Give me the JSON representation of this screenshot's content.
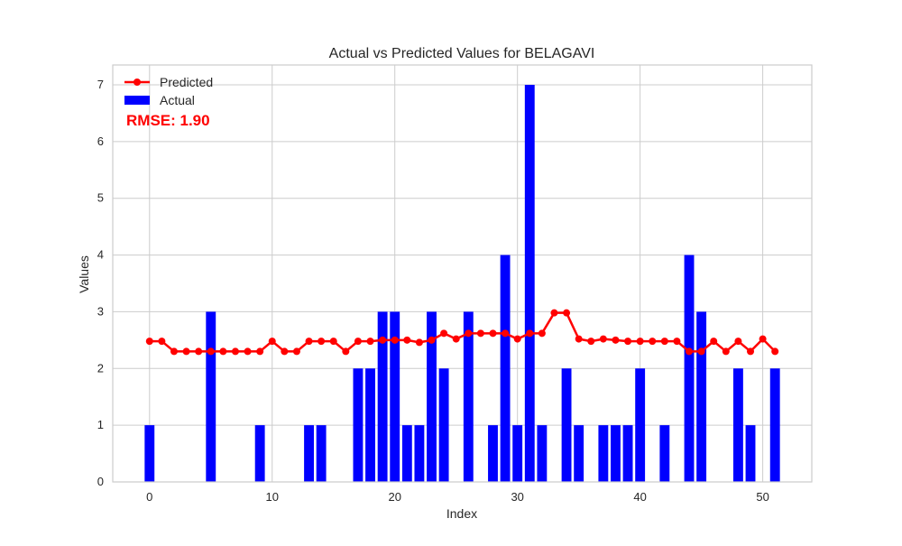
{
  "chart_data": {
    "type": "bar",
    "title": "Actual vs Predicted Values for BELAGAVI",
    "xlabel": "Index",
    "ylabel": "Values",
    "xlim": [
      -3,
      54
    ],
    "ylim": [
      0,
      7.35
    ],
    "xticks": [
      0,
      10,
      20,
      30,
      40,
      50
    ],
    "yticks": [
      0,
      1,
      2,
      3,
      4,
      5,
      6,
      7
    ],
    "grid": true,
    "legend_position": "top-left",
    "annotation": "RMSE: 1.90",
    "x": [
      0,
      1,
      2,
      3,
      4,
      5,
      6,
      7,
      8,
      9,
      10,
      11,
      12,
      13,
      14,
      15,
      16,
      17,
      18,
      19,
      20,
      21,
      22,
      23,
      24,
      25,
      26,
      27,
      28,
      29,
      30,
      31,
      32,
      33,
      34,
      35,
      36,
      37,
      38,
      39,
      40,
      41,
      42,
      43,
      44,
      45,
      46,
      47,
      48,
      49,
      50,
      51
    ],
    "series": [
      {
        "name": "Predicted",
        "kind": "line",
        "color": "#ff0000",
        "values": [
          2.48,
          2.48,
          2.3,
          2.3,
          2.3,
          2.3,
          2.3,
          2.3,
          2.3,
          2.3,
          2.48,
          2.3,
          2.3,
          2.48,
          2.48,
          2.48,
          2.3,
          2.48,
          2.48,
          2.5,
          2.5,
          2.5,
          2.46,
          2.5,
          2.62,
          2.52,
          2.62,
          2.62,
          2.62,
          2.62,
          2.52,
          2.62,
          2.62,
          2.98,
          2.98,
          2.52,
          2.48,
          2.52,
          2.5,
          2.48,
          2.48,
          2.48,
          2.48,
          2.48,
          2.3,
          2.3,
          2.48,
          2.3,
          2.48,
          2.3,
          2.52,
          2.3
        ]
      },
      {
        "name": "Actual",
        "kind": "bar",
        "color": "#0000ff",
        "values": [
          1,
          0,
          0,
          0,
          0,
          3,
          0,
          0,
          0,
          1,
          0,
          0,
          0,
          1,
          1,
          0,
          0,
          2,
          2,
          3,
          3,
          1,
          1,
          3,
          2,
          0,
          3,
          0,
          1,
          4,
          1,
          7,
          1,
          0,
          2,
          1,
          0,
          1,
          1,
          1,
          2,
          0,
          1,
          0,
          4,
          3,
          0,
          0,
          2,
          1,
          0,
          2
        ]
      }
    ]
  }
}
